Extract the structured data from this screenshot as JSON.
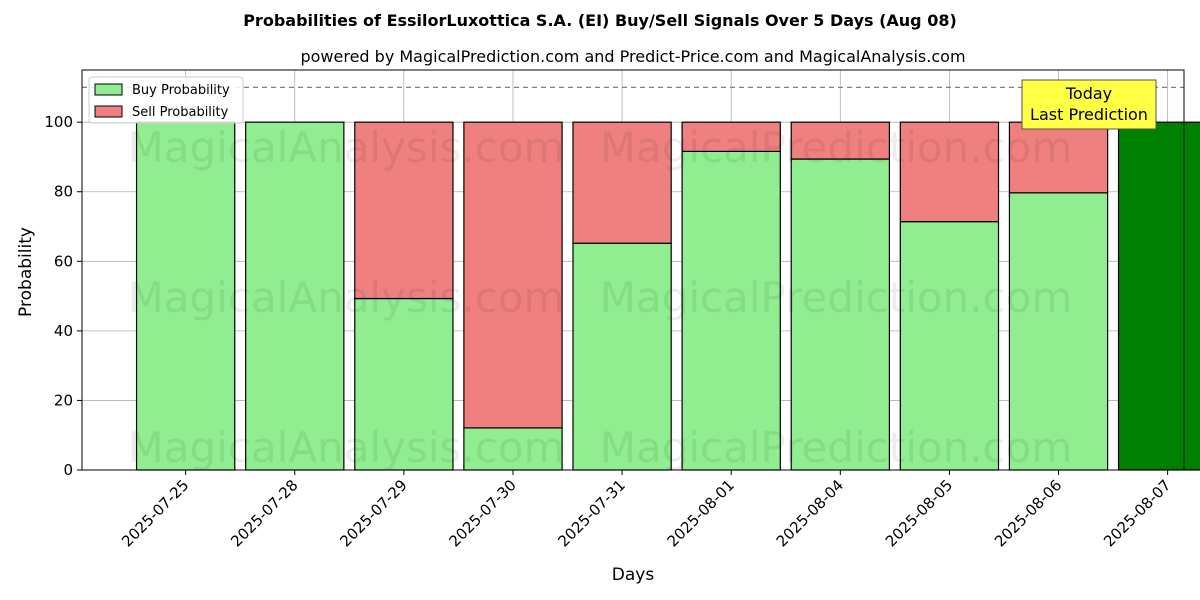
{
  "chart_data": {
    "type": "bar",
    "stacked": true,
    "title": "Probabilities of EssilorLuxottica S.A. (EI) Buy/Sell Signals Over 5 Days (Aug 08)",
    "subtitle": "powered by MagicalPrediction.com and Predict-Price.com and MagicalAnalysis.com",
    "xlabel": "Days",
    "ylabel": "Probability",
    "ylim": [
      0,
      115
    ],
    "yticks": [
      0,
      20,
      40,
      60,
      80,
      100
    ],
    "grid": true,
    "reference_line": 110,
    "categories": [
      "2025-07-25",
      "2025-07-28",
      "2025-07-29",
      "2025-07-30",
      "2025-07-31",
      "2025-08-01",
      "2025-08-04",
      "2025-08-05",
      "2025-08-06",
      "2025-08-07"
    ],
    "series": [
      {
        "name": "Buy Probability",
        "color": "#90ee90",
        "values": [
          100,
          100,
          49.3,
          12.1,
          65.2,
          91.6,
          89.4,
          71.4,
          79.7,
          100
        ]
      },
      {
        "name": "Sell Probability",
        "color": "#f08080",
        "values": [
          0,
          0,
          50.7,
          87.9,
          34.8,
          8.4,
          10.6,
          28.6,
          20.3,
          0
        ]
      }
    ],
    "highlight": {
      "index": 9,
      "color": "#008000"
    },
    "legend": {
      "position": "top-left",
      "entries": [
        "Buy Probability",
        "Sell Probability"
      ]
    },
    "annotation": {
      "lines": [
        "Today",
        "Last Prediction"
      ],
      "background": "#ffff44"
    },
    "watermarks": [
      "MagicalAnalysis.com",
      "MagicalPrediction.com"
    ]
  }
}
